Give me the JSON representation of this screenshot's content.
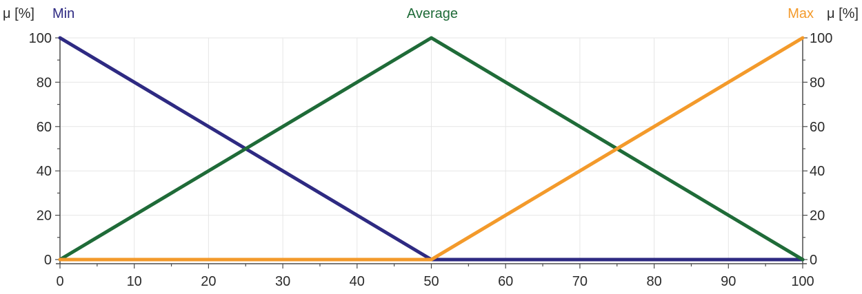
{
  "chart_data": {
    "type": "line",
    "x_ticks": [
      0,
      10,
      20,
      30,
      40,
      50,
      60,
      70,
      80,
      90,
      100
    ],
    "y_ticks": [
      0,
      20,
      40,
      60,
      80,
      100
    ],
    "xlim": [
      0,
      100
    ],
    "ylim": [
      0,
      100
    ],
    "y_left_label": "μ [%]",
    "y_right_label": "μ [%]",
    "grid": true,
    "series": [
      {
        "name": "Min",
        "color": "#2e2a82",
        "label_position": "top-left",
        "points": [
          [
            0,
            100
          ],
          [
            50,
            0
          ],
          [
            100,
            0
          ]
        ]
      },
      {
        "name": "Average",
        "color": "#1f6b38",
        "label_position": "top-center",
        "points": [
          [
            0,
            0
          ],
          [
            50,
            100
          ],
          [
            100,
            0
          ]
        ]
      },
      {
        "name": "Max",
        "color": "#f39a2b",
        "label_position": "top-right",
        "points": [
          [
            0,
            0
          ],
          [
            50,
            0
          ],
          [
            100,
            100
          ]
        ]
      }
    ]
  }
}
